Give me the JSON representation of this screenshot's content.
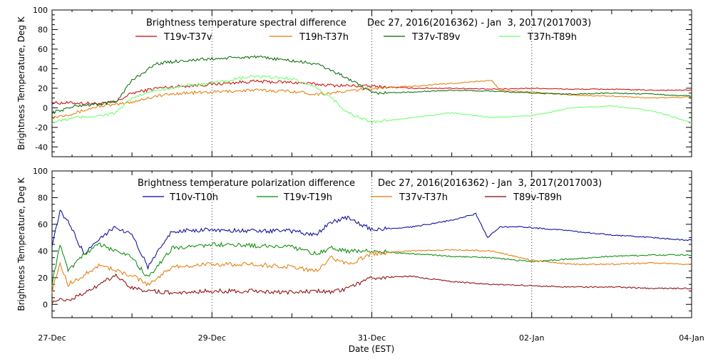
{
  "chart_data": [
    {
      "type": "line",
      "title": "Brightness temperature spectral difference",
      "date_range": "Dec 27, 2016(2016362) - Jan  3, 2017(2017003)",
      "ylabel": "Brightness Temperature, Deg K",
      "xlabel": "",
      "ylim": [
        -50,
        100
      ],
      "yticks": [
        -40,
        -20,
        0,
        20,
        40,
        60,
        80,
        100
      ],
      "xlim": [
        0,
        8
      ],
      "grid": "vertical dotted at day 0, 2, 4, 6, 8",
      "legend_position": "top",
      "series": [
        {
          "name": "T19v-T37v",
          "color": "#cc0000",
          "x": [
            0,
            0.3,
            0.6,
            0.8,
            1.0,
            1.3,
            1.6,
            2.0,
            2.5,
            3.0,
            3.5,
            4.0,
            4.5,
            5.0,
            5.5,
            6.0,
            6.5,
            7.0,
            7.5,
            8.0
          ],
          "y": [
            5,
            5,
            4,
            6,
            15,
            20,
            22,
            24,
            27,
            26,
            23,
            22,
            20,
            20,
            19,
            20,
            19,
            19,
            18,
            18
          ]
        },
        {
          "name": "T19h-T37h",
          "color": "#e07800",
          "x": [
            0,
            0.3,
            0.6,
            0.8,
            1.0,
            1.3,
            1.6,
            2.0,
            2.5,
            3.0,
            3.3,
            3.5,
            4.0,
            4.5,
            5.0,
            5.5,
            5.6,
            6.0,
            6.5,
            7.0,
            7.5,
            8.0
          ],
          "y": [
            -10,
            -5,
            2,
            3,
            6,
            12,
            15,
            16,
            18,
            17,
            14,
            15,
            20,
            22,
            25,
            28,
            18,
            16,
            13,
            12,
            10,
            11
          ]
        },
        {
          "name": "T37v-T89v",
          "color": "#006600",
          "x": [
            0,
            0.3,
            0.6,
            0.8,
            1.0,
            1.3,
            1.6,
            2.0,
            2.5,
            2.8,
            3.0,
            3.3,
            3.5,
            3.7,
            4.0,
            4.5,
            5.0,
            5.5,
            6.0,
            6.5,
            7.0,
            7.5,
            8.0
          ],
          "y": [
            -5,
            2,
            4,
            6,
            28,
            45,
            48,
            50,
            52,
            50,
            48,
            45,
            38,
            30,
            15,
            16,
            18,
            17,
            15,
            14,
            15,
            14,
            12
          ]
        },
        {
          "name": "T37h-T89h",
          "color": "#66ff66",
          "x": [
            0,
            0.3,
            0.6,
            0.8,
            1.0,
            1.3,
            1.6,
            2.0,
            2.5,
            3.0,
            3.3,
            3.5,
            3.7,
            4.0,
            4.5,
            5.0,
            5.5,
            6.0,
            6.5,
            7.0,
            7.5,
            7.8,
            8.0
          ],
          "y": [
            -15,
            -10,
            -8,
            -5,
            10,
            18,
            22,
            25,
            32,
            30,
            20,
            10,
            -5,
            -15,
            -10,
            -5,
            -10,
            -8,
            0,
            2,
            -3,
            -10,
            -15
          ]
        }
      ]
    },
    {
      "type": "line",
      "title": "Brightness temperature polarization difference",
      "date_range": "Dec 27, 2016(2016362) - Jan  3, 2017(2017003)",
      "ylabel": "Brightness Temperature, Deg K",
      "xlabel": "Date (EST)",
      "ylim": [
        -10,
        100
      ],
      "yticks": [
        0,
        20,
        40,
        60,
        80,
        100
      ],
      "xlim": [
        0,
        8
      ],
      "xticks": [
        "27-Dec",
        "29-Dec",
        "31-Dec",
        "02-Jan",
        "04-Jan"
      ],
      "grid": "vertical dotted at day 0, 2, 4, 6, 8",
      "legend_position": "top",
      "series": [
        {
          "name": "T10v-T10h",
          "color": "#000099",
          "x": [
            0,
            0.1,
            0.2,
            0.4,
            0.6,
            0.8,
            1.0,
            1.2,
            1.5,
            2.0,
            2.5,
            3.0,
            3.3,
            3.5,
            3.7,
            4.0,
            4.5,
            5.0,
            5.3,
            5.45,
            5.6,
            5.9,
            6.5,
            7.0,
            7.5,
            8.0
          ],
          "y": [
            45,
            70,
            62,
            38,
            50,
            58,
            52,
            28,
            55,
            56,
            55,
            55,
            52,
            62,
            65,
            56,
            58,
            63,
            68,
            50,
            58,
            58,
            55,
            52,
            50,
            48
          ]
        },
        {
          "name": "T19v-T19h",
          "color": "#008800",
          "x": [
            0,
            0.1,
            0.2,
            0.4,
            0.6,
            0.8,
            1.0,
            1.2,
            1.5,
            2.0,
            2.5,
            3.0,
            3.3,
            3.5,
            3.7,
            4.0,
            4.5,
            5.0,
            5.5,
            6.0,
            6.5,
            7.0,
            7.5,
            8.0
          ],
          "y": [
            15,
            45,
            25,
            38,
            45,
            40,
            35,
            20,
            42,
            45,
            44,
            43,
            38,
            42,
            40,
            40,
            38,
            36,
            35,
            32,
            34,
            36,
            37,
            37
          ]
        },
        {
          "name": "T37v-T37h",
          "color": "#e07800",
          "x": [
            0,
            0.1,
            0.2,
            0.4,
            0.6,
            0.8,
            1.0,
            1.2,
            1.5,
            2.0,
            2.5,
            3.0,
            3.3,
            3.5,
            3.7,
            4.0,
            4.5,
            5.0,
            5.5,
            6.0,
            6.5,
            7.0,
            7.5,
            8.0
          ],
          "y": [
            10,
            30,
            15,
            22,
            30,
            25,
            22,
            15,
            28,
            30,
            30,
            28,
            25,
            35,
            30,
            38,
            40,
            41,
            40,
            33,
            30,
            30,
            31,
            30
          ]
        },
        {
          "name": "T89v-T89h",
          "color": "#880000",
          "x": [
            0,
            0.1,
            0.2,
            0.4,
            0.6,
            0.8,
            1.0,
            1.2,
            1.5,
            2.0,
            2.5,
            3.0,
            3.3,
            3.5,
            3.7,
            4.0,
            4.5,
            5.0,
            5.5,
            6.0,
            6.5,
            7.0,
            7.5,
            8.0
          ],
          "y": [
            2,
            5,
            3,
            8,
            15,
            22,
            12,
            10,
            9,
            10,
            10,
            9,
            10,
            9,
            12,
            20,
            21,
            17,
            15,
            14,
            13,
            13,
            12,
            12
          ]
        }
      ]
    }
  ]
}
